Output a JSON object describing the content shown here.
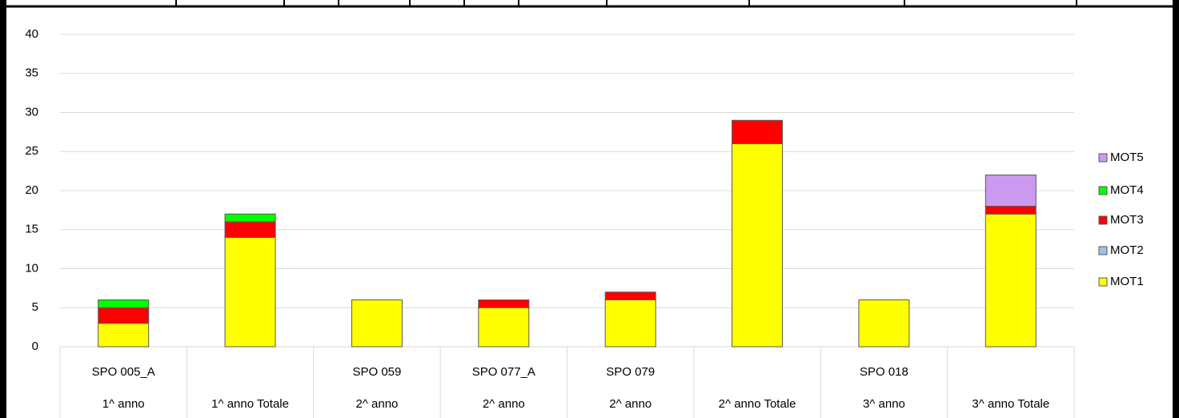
{
  "chart_data": {
    "type": "stacked_bar",
    "categories": [
      {
        "label": "SPO 005_A",
        "group": "1^ anno"
      },
      {
        "label": null,
        "group": "1^ anno Totale"
      },
      {
        "label": "SPO 059",
        "group": "2^ anno"
      },
      {
        "label": "SPO 077_A",
        "group": "2^ anno"
      },
      {
        "label": "SPO 079",
        "group": "2^ anno"
      },
      {
        "label": null,
        "group": "2^ anno Totale"
      },
      {
        "label": "SPO 018",
        "group": "3^ anno"
      },
      {
        "label": null,
        "group": "3^ anno Totale"
      }
    ],
    "series": [
      {
        "name": "MOT1",
        "color": "#ffff00",
        "values": [
          3,
          14,
          6,
          5,
          6,
          26,
          6,
          17
        ]
      },
      {
        "name": "MOT2",
        "color": "#9dc3e6",
        "values": [
          0,
          0,
          0,
          0,
          0,
          0,
          0,
          0
        ]
      },
      {
        "name": "MOT3",
        "color": "#ff0000",
        "values": [
          2,
          2,
          0,
          1,
          1,
          3,
          0,
          1
        ]
      },
      {
        "name": "MOT4",
        "color": "#00ff00",
        "values": [
          1,
          1,
          0,
          0,
          0,
          0,
          0,
          0
        ]
      },
      {
        "name": "MOT5",
        "color": "#cc99f0",
        "values": [
          0,
          0,
          0,
          0,
          0,
          0,
          0,
          4
        ]
      }
    ],
    "ylim": [
      0,
      40
    ],
    "yticks": [
      0,
      5,
      10,
      15,
      20,
      25,
      30,
      35,
      40
    ],
    "grid": true,
    "legend": "right"
  }
}
